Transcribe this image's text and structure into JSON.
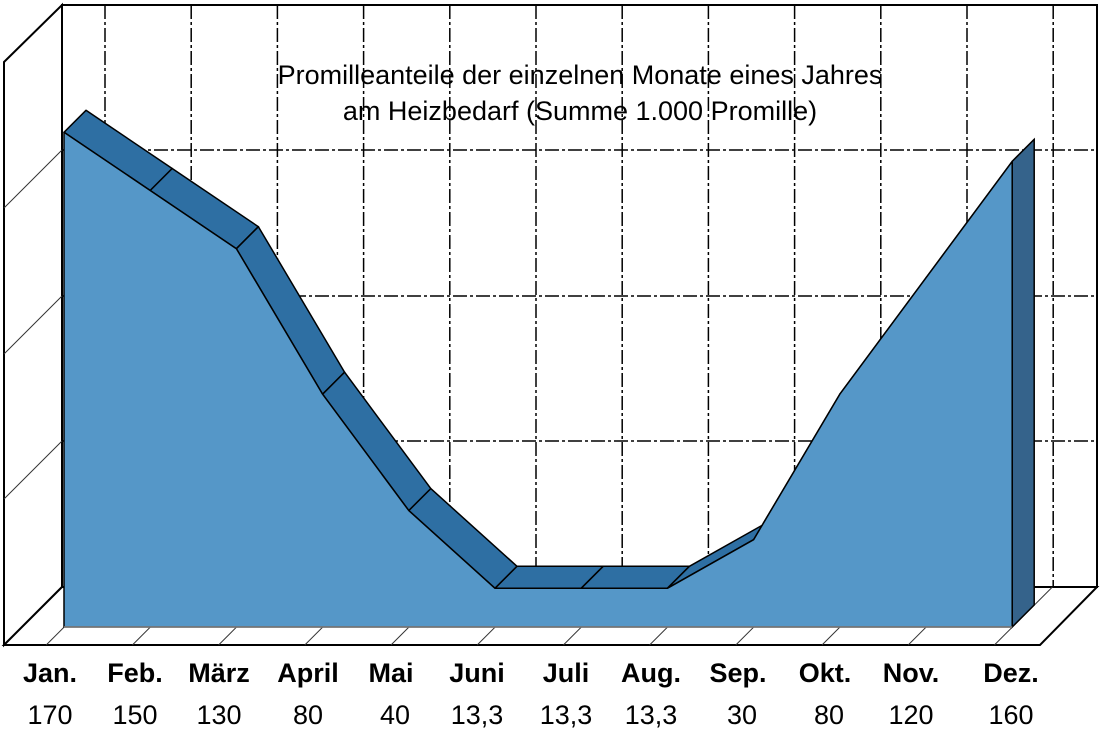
{
  "chart_data": {
    "type": "area",
    "title": "Promilleanteile der einzelnen Monate eines Jahres am Heizbedarf (Summe 1.000 Promille)",
    "title_lines": [
      "Promilleanteile der einzelnen Monate eines Jahres",
      "am Heizbedarf (Summe 1.000 Promille)"
    ],
    "xlabel": "",
    "ylabel": "",
    "categories": [
      "Jan.",
      "Feb.",
      "März",
      "April",
      "Mai",
      "Juni",
      "Juli",
      "Aug.",
      "Sep.",
      "Okt.",
      "Nov.",
      "Dez."
    ],
    "value_labels": [
      "170",
      "150",
      "130",
      "80",
      "40",
      "13,3",
      "13,3",
      "13,3",
      "30",
      "80",
      "120",
      "160"
    ],
    "series": [
      {
        "name": "Promille",
        "values": [
          170,
          150,
          130,
          80,
          40,
          13.3,
          13.3,
          13.3,
          30,
          80,
          120,
          160
        ],
        "color": "#5597c8",
        "top_color": "#2e6fa3",
        "side_color": "#35638b"
      }
    ],
    "ylim": [
      0,
      200
    ],
    "grid": true,
    "legend": "none",
    "style": "3d-area"
  }
}
